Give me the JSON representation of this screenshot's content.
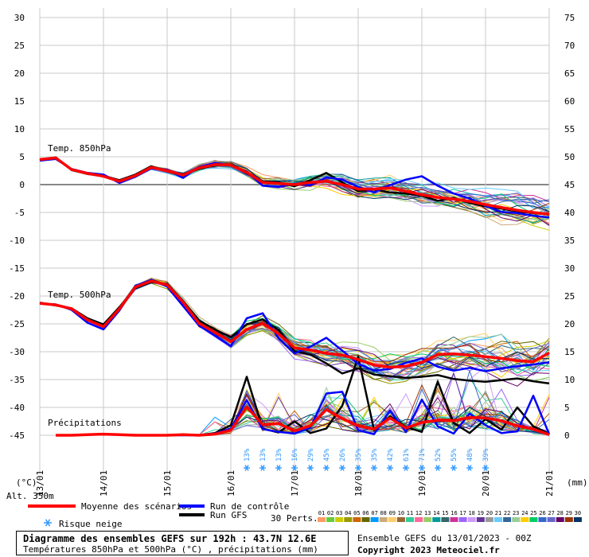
{
  "chart_data": {
    "type": "line",
    "title": "Diagramme des ensembles GEFS sur 192h : 43.7N 12.6E",
    "subtitle": "Températures 850hPa et 500hPa (°C) , précipitations (mm)",
    "left_axis": {
      "unit": "(°C)",
      "ticks": [
        30,
        25,
        20,
        15,
        10,
        5,
        0,
        -5,
        -10,
        -15,
        -20,
        -25,
        -30,
        -35,
        -40,
        -45
      ],
      "range": [
        -45,
        30
      ]
    },
    "right_axis": {
      "unit": "(mm)",
      "ticks": [
        75,
        70,
        65,
        60,
        55,
        50,
        45,
        40,
        35,
        30,
        25,
        20,
        15,
        10,
        5,
        0
      ],
      "range": [
        0,
        75
      ]
    },
    "x_axis": {
      "start_label": "13/01",
      "labels": [
        "14/01",
        "15/01",
        "16/01",
        "17/01",
        "18/01",
        "19/01",
        "20/01",
        "21/01"
      ],
      "range_hours": [
        0,
        192
      ]
    },
    "altitude_label": "Alt. 350m",
    "panel_labels": {
      "t850": "Temp. 850hPa",
      "t500": "Temp. 500hPa",
      "precip": "Précipitations"
    },
    "grid": true,
    "series": [
      {
        "name": "Moyenne des scénarios",
        "color": "#ff0000",
        "panel": "t850",
        "x": [
          0,
          6,
          12,
          18,
          24,
          30,
          36,
          42,
          48,
          54,
          60,
          66,
          72,
          78,
          84,
          90,
          96,
          102,
          108,
          114,
          120,
          126,
          132,
          138,
          144,
          150,
          156,
          162,
          168,
          174,
          180,
          186,
          192
        ],
        "values": [
          4.5,
          4.8,
          2.7,
          2.0,
          1.5,
          0.6,
          1.6,
          3.1,
          2.5,
          1.7,
          3.0,
          3.6,
          3.5,
          2.2,
          0.4,
          0.2,
          0.0,
          0.4,
          0.6,
          0.0,
          -0.8,
          -0.8,
          -0.6,
          -1.2,
          -1.8,
          -2.3,
          -2.6,
          -3.0,
          -3.6,
          -4.1,
          -4.6,
          -5.0,
          -5.3
        ]
      },
      {
        "name": "Run de contrôle",
        "color": "#0000ff",
        "panel": "t850",
        "x": [
          0,
          6,
          12,
          18,
          24,
          30,
          36,
          42,
          48,
          54,
          60,
          66,
          72,
          78,
          84,
          90,
          96,
          102,
          108,
          114,
          120,
          126,
          132,
          138,
          144,
          150,
          156,
          162,
          168,
          174,
          180,
          186,
          192
        ],
        "values": [
          4.3,
          4.6,
          2.8,
          2.1,
          1.8,
          0.3,
          1.4,
          2.9,
          2.7,
          1.2,
          3.2,
          3.9,
          3.4,
          2.4,
          -0.2,
          -0.4,
          0.2,
          -0.1,
          1.3,
          0.9,
          -0.4,
          -1.4,
          -0.1,
          0.9,
          1.5,
          -0.2,
          -1.6,
          -2.5,
          -3.8,
          -4.9,
          -5.1,
          -5.6,
          -5.9
        ]
      },
      {
        "name": "Run GFS",
        "color": "#000000",
        "panel": "t850",
        "x": [
          0,
          6,
          12,
          18,
          24,
          30,
          36,
          42,
          48,
          54,
          60,
          66,
          72,
          78,
          84,
          90,
          96,
          102,
          108,
          114,
          120,
          126,
          132,
          138,
          144,
          150,
          156,
          162,
          168,
          174,
          180,
          186,
          192
        ],
        "values": [
          4.4,
          4.9,
          2.6,
          1.9,
          1.6,
          0.8,
          1.8,
          3.3,
          2.4,
          1.9,
          2.8,
          3.5,
          3.6,
          2.0,
          0.6,
          0.4,
          -0.3,
          0.8,
          2.1,
          0.4,
          -1.2,
          -0.9,
          -1.4,
          -1.6,
          -2.0,
          -2.9,
          -2.4,
          -3.3,
          -3.9,
          -4.3,
          -4.8,
          -5.1,
          -5.4
        ]
      },
      {
        "name": "Moyenne des scénarios",
        "color": "#ff0000",
        "panel": "t500",
        "x": [
          0,
          6,
          12,
          18,
          24,
          30,
          36,
          42,
          48,
          54,
          60,
          66,
          72,
          78,
          84,
          90,
          96,
          102,
          108,
          114,
          120,
          126,
          132,
          138,
          144,
          150,
          156,
          162,
          168,
          174,
          180,
          186,
          192
        ],
        "values": [
          -21.3,
          -21.6,
          -22.3,
          -24.3,
          -25.5,
          -22.3,
          -18.4,
          -17.3,
          -18.0,
          -21.1,
          -24.9,
          -26.5,
          -28.2,
          -26.0,
          -24.9,
          -26.8,
          -29.3,
          -29.7,
          -30.3,
          -30.6,
          -31.4,
          -32.4,
          -32.8,
          -32.6,
          -31.9,
          -30.5,
          -30.4,
          -30.6,
          -30.9,
          -31.2,
          -31.6,
          -31.8,
          -30.2
        ]
      },
      {
        "name": "Run de contrôle",
        "color": "#0000ff",
        "panel": "t500",
        "x": [
          0,
          6,
          12,
          18,
          24,
          30,
          36,
          42,
          48,
          54,
          60,
          66,
          72,
          78,
          84,
          90,
          96,
          102,
          108,
          114,
          120,
          126,
          132,
          138,
          144,
          150,
          156,
          162,
          168,
          174,
          180,
          186,
          192
        ],
        "values": [
          -21.4,
          -21.5,
          -22.5,
          -24.8,
          -26.0,
          -22.6,
          -18.2,
          -17.1,
          -18.3,
          -21.8,
          -25.3,
          -27.1,
          -29.0,
          -24.0,
          -23.1,
          -27.6,
          -30.3,
          -29.1,
          -27.5,
          -29.8,
          -32.2,
          -33.4,
          -33.1,
          -32.0,
          -31.2,
          -32.7,
          -33.4,
          -32.9,
          -33.5,
          -33.0,
          -32.6,
          -32.3,
          -31.9
        ]
      },
      {
        "name": "Run GFS",
        "color": "#000000",
        "panel": "t500",
        "x": [
          0,
          6,
          12,
          18,
          24,
          30,
          36,
          42,
          48,
          54,
          60,
          66,
          72,
          78,
          84,
          90,
          96,
          102,
          108,
          114,
          120,
          126,
          132,
          138,
          144,
          150,
          156,
          162,
          168,
          174,
          180,
          186,
          192
        ],
        "values": [
          -21.2,
          -21.7,
          -22.2,
          -24.0,
          -25.1,
          -22.0,
          -18.6,
          -17.5,
          -17.8,
          -20.9,
          -24.4,
          -26.0,
          -27.4,
          -25.1,
          -24.2,
          -26.1,
          -29.9,
          -30.5,
          -32.1,
          -33.9,
          -33.0,
          -34.1,
          -34.4,
          -34.7,
          -34.5,
          -34.2,
          -34.9,
          -35.2,
          -35.4,
          -35.1,
          -34.8,
          -35.3,
          -35.7
        ]
      },
      {
        "name": "Moyenne des scénarios",
        "color": "#ff0000",
        "panel": "precip",
        "unit": "mm",
        "x": [
          6,
          12,
          18,
          24,
          30,
          36,
          42,
          48,
          54,
          60,
          66,
          72,
          78,
          84,
          90,
          96,
          102,
          108,
          114,
          120,
          126,
          132,
          138,
          144,
          150,
          156,
          162,
          168,
          174,
          180,
          186,
          192
        ],
        "values": [
          0.0,
          0.0,
          0.1,
          0.2,
          0.1,
          0.0,
          0.0,
          0.0,
          0.1,
          0.0,
          0.2,
          0.9,
          5.1,
          1.9,
          2.1,
          0.8,
          1.7,
          4.6,
          3.0,
          1.7,
          1.1,
          3.1,
          1.3,
          2.3,
          2.7,
          2.6,
          3.2,
          3.1,
          2.6,
          1.7,
          1.1,
          0.1
        ]
      },
      {
        "name": "Run de contrôle",
        "color": "#0000ff",
        "panel": "precip",
        "unit": "mm",
        "x": [
          6,
          12,
          18,
          24,
          30,
          36,
          42,
          48,
          54,
          60,
          66,
          72,
          78,
          84,
          90,
          96,
          102,
          108,
          114,
          120,
          126,
          132,
          138,
          144,
          150,
          156,
          162,
          168,
          174,
          180,
          186,
          192
        ],
        "values": [
          0.0,
          0.0,
          0.1,
          0.2,
          0.1,
          0.0,
          0.0,
          0.0,
          0.0,
          0.0,
          0.3,
          1.2,
          6.3,
          1.1,
          0.6,
          0.3,
          1.4,
          7.5,
          7.8,
          0.9,
          0.2,
          4.4,
          0.6,
          6.4,
          1.6,
          0.3,
          3.9,
          1.8,
          0.4,
          0.7,
          7.1,
          0.2
        ]
      },
      {
        "name": "Run GFS",
        "color": "#000000",
        "panel": "precip",
        "unit": "mm",
        "x": [
          6,
          12,
          18,
          24,
          30,
          36,
          42,
          48,
          54,
          60,
          66,
          72,
          78,
          84,
          90,
          96,
          102,
          108,
          114,
          120,
          126,
          132,
          138,
          144,
          150,
          156,
          162,
          168,
          174,
          180,
          186,
          192
        ],
        "values": [
          0.0,
          0.0,
          0.1,
          0.2,
          0.1,
          0.0,
          0.0,
          0.0,
          0.1,
          0.0,
          0.4,
          1.8,
          10.5,
          1.2,
          0.5,
          2.5,
          0.4,
          1.2,
          5.3,
          14.1,
          0.9,
          3.4,
          1.5,
          0.6,
          9.6,
          2.2,
          0.4,
          2.9,
          1.0,
          5.0,
          1.6,
          0.3
        ]
      }
    ],
    "snow_risk": {
      "x": [
        78,
        84,
        90,
        96,
        102,
        108,
        114,
        120,
        126,
        132,
        138,
        144,
        150,
        156,
        162,
        168
      ],
      "percent": [
        "13%",
        "13%",
        "13%",
        "16%",
        "29%",
        "45%",
        "26%",
        "35%",
        "35%",
        "42%",
        "61%",
        "71%",
        "52%",
        "55%",
        "48%",
        "39%"
      ]
    },
    "legend": {
      "mean": "Moyenne des scénarios",
      "control": "Run de contrôle",
      "gfs": "Run GFS",
      "snow": "Risque neige",
      "perts_label": "30 Perts.",
      "perts": [
        "01",
        "02",
        "03",
        "04",
        "05",
        "06",
        "07",
        "08",
        "09",
        "10",
        "11",
        "12",
        "13",
        "14",
        "15",
        "16",
        "17",
        "18",
        "19",
        "20",
        "21",
        "22",
        "23",
        "24",
        "25",
        "26",
        "27",
        "28",
        "29",
        "30"
      ],
      "pert_colors": [
        "#ff9966",
        "#66cc33",
        "#cccc00",
        "#999900",
        "#cc6600",
        "#666600",
        "#0099ff",
        "#ccaa77",
        "#ffcc66",
        "#996633",
        "#33cc99",
        "#ff6699",
        "#99cc66",
        "#009999",
        "#336666",
        "#cc3399",
        "#9966ff",
        "#cc99ff",
        "#663399",
        "#999999",
        "#66ccff",
        "#336699",
        "#99cc99",
        "#ffcc00",
        "#00cc66",
        "#3366cc",
        "#6666cc",
        "#660066",
        "#993300",
        "#003366"
      ]
    },
    "footer": {
      "title_line1": "Diagramme des ensembles GEFS sur 192h : 43.7N 12.6E",
      "title_line2": "Températures 850hPa et 500hPa (°C) , précipitations (mm)",
      "run_info": "Ensemble GEFS du 13/01/2023 - 00Z",
      "copyright": "Copyright 2023 Meteociel.fr"
    }
  }
}
